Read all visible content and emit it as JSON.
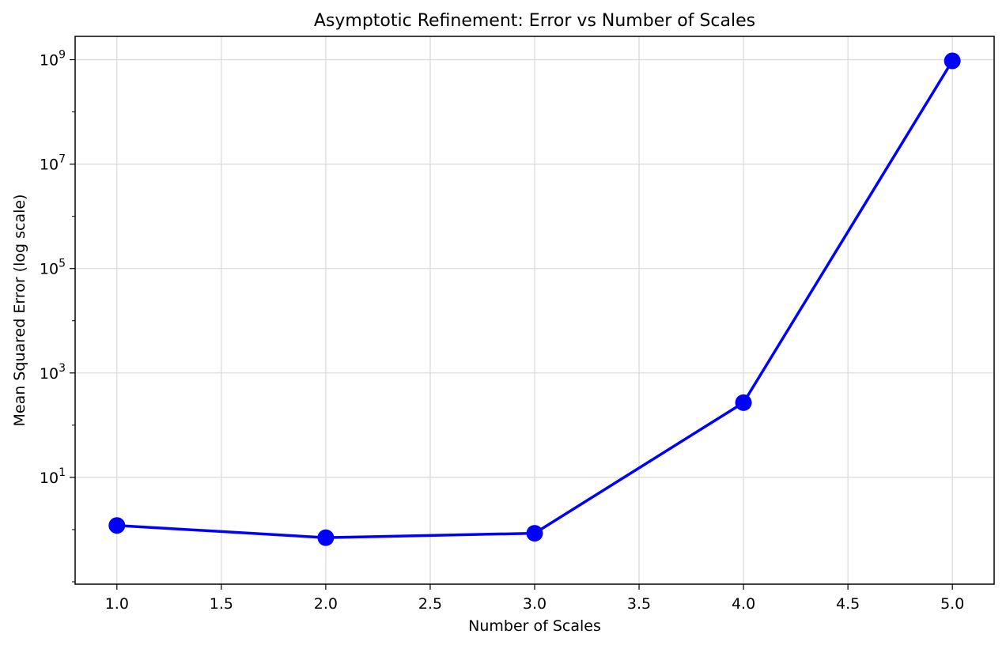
{
  "chart_data": {
    "type": "line",
    "title": "Asymptotic Refinement: Error vs Number of Scales",
    "xlabel": "Number of Scales",
    "ylabel": "Mean Squared Error (log scale)",
    "x": [
      1.0,
      2.0,
      3.0,
      4.0,
      5.0
    ],
    "series": [
      {
        "values": [
          1.2,
          0.7,
          0.85,
          270,
          950000000
        ],
        "color": "#0000ff",
        "marker": "circle"
      }
    ],
    "xlim": [
      0.8,
      5.2
    ],
    "ylim": [
      0.09,
      2800000000
    ],
    "yscale": "log",
    "xticks": [
      "1.0",
      "1.5",
      "2.0",
      "2.5",
      "3.0",
      "3.5",
      "4.0",
      "4.5",
      "5.0"
    ],
    "yticks": [
      {
        "base": "10",
        "exp": "1"
      },
      {
        "base": "10",
        "exp": "3"
      },
      {
        "base": "10",
        "exp": "5"
      },
      {
        "base": "10",
        "exp": "7"
      },
      {
        "base": "10",
        "exp": "9"
      }
    ],
    "grid": true,
    "legend": false
  }
}
